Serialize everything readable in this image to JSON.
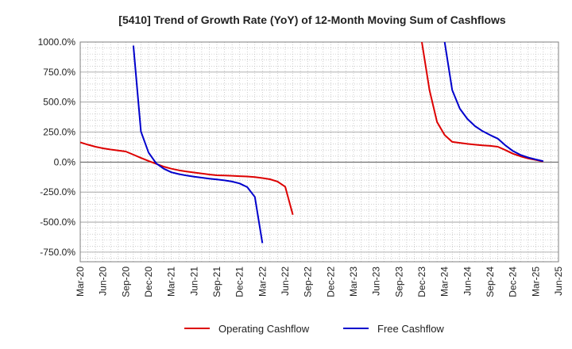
{
  "chart_data": {
    "type": "line",
    "title": "[5410]  Trend of Growth Rate (YoY) of 12-Month Moving Sum of Cashflows",
    "xlabel": "",
    "ylabel": "",
    "ylim": [
      -830,
      1000
    ],
    "xlim": [
      "2020-03",
      "2025-06"
    ],
    "y_ticks": [
      1000,
      750,
      500,
      250,
      0,
      -250,
      -500,
      -750
    ],
    "y_tick_labels": [
      "1000.0%",
      "750.0%",
      "500.0%",
      "250.0%",
      "0.0%",
      "-250.0%",
      "-500.0%",
      "-750.0%"
    ],
    "x_ticks": [
      "2020-03",
      "2020-06",
      "2020-09",
      "2020-12",
      "2021-03",
      "2021-06",
      "2021-09",
      "2021-12",
      "2022-03",
      "2022-06",
      "2022-09",
      "2022-12",
      "2023-03",
      "2023-06",
      "2023-09",
      "2023-12",
      "2024-03",
      "2024-06",
      "2024-09",
      "2024-12",
      "2025-03",
      "2025-06"
    ],
    "x_tick_labels": [
      "Mar-20",
      "Jun-20",
      "Sep-20",
      "Dec-20",
      "Mar-21",
      "Jun-21",
      "Sep-21",
      "Dec-21",
      "Mar-22",
      "Jun-22",
      "Sep-22",
      "Dec-22",
      "Mar-23",
      "Jun-23",
      "Sep-23",
      "Dec-23",
      "Mar-24",
      "Jun-24",
      "Sep-24",
      "Dec-24",
      "Mar-25",
      "Jun-25"
    ],
    "grid": true,
    "legend_position": "bottom",
    "series": [
      {
        "name": "Operating Cashflow",
        "color": "#dd0000",
        "segments": [
          [
            {
              "x": "2020-03",
              "y": 165
            },
            {
              "x": "2020-04",
              "y": 145
            },
            {
              "x": "2020-05",
              "y": 128
            },
            {
              "x": "2020-06",
              "y": 115
            },
            {
              "x": "2020-07",
              "y": 105
            },
            {
              "x": "2020-08",
              "y": 97
            },
            {
              "x": "2020-09",
              "y": 88
            },
            {
              "x": "2020-10",
              "y": 62
            },
            {
              "x": "2020-11",
              "y": 35
            },
            {
              "x": "2020-12",
              "y": 10
            },
            {
              "x": "2021-01",
              "y": -15
            },
            {
              "x": "2021-02",
              "y": -38
            },
            {
              "x": "2021-03",
              "y": -55
            },
            {
              "x": "2021-04",
              "y": -68
            },
            {
              "x": "2021-05",
              "y": -78
            },
            {
              "x": "2021-06",
              "y": -87
            },
            {
              "x": "2021-07",
              "y": -95
            },
            {
              "x": "2021-08",
              "y": -103
            },
            {
              "x": "2021-09",
              "y": -110
            },
            {
              "x": "2021-10",
              "y": -112
            },
            {
              "x": "2021-11",
              "y": -114
            },
            {
              "x": "2021-12",
              "y": -117
            },
            {
              "x": "2022-01",
              "y": -120
            },
            {
              "x": "2022-02",
              "y": -125
            },
            {
              "x": "2022-03",
              "y": -133
            },
            {
              "x": "2022-04",
              "y": -143
            },
            {
              "x": "2022-05",
              "y": -162
            },
            {
              "x": "2022-06",
              "y": -205
            },
            {
              "x": "2022-07",
              "y": -438
            }
          ],
          [
            {
              "x": "2023-12",
              "y": 1000
            },
            {
              "x": "2024-01",
              "y": 600
            },
            {
              "x": "2024-02",
              "y": 335
            },
            {
              "x": "2024-03",
              "y": 225
            },
            {
              "x": "2024-04",
              "y": 168
            },
            {
              "x": "2024-05",
              "y": 160
            },
            {
              "x": "2024-06",
              "y": 152
            },
            {
              "x": "2024-07",
              "y": 145
            },
            {
              "x": "2024-08",
              "y": 140
            },
            {
              "x": "2024-09",
              "y": 135
            },
            {
              "x": "2024-10",
              "y": 128
            },
            {
              "x": "2024-11",
              "y": 100
            },
            {
              "x": "2024-12",
              "y": 70
            },
            {
              "x": "2025-01",
              "y": 48
            },
            {
              "x": "2025-02",
              "y": 30
            },
            {
              "x": "2025-03",
              "y": 18
            },
            {
              "x": "2025-04",
              "y": 5
            }
          ]
        ]
      },
      {
        "name": "Free Cashflow",
        "color": "#0000cc",
        "segments": [
          [
            {
              "x": "2020-10",
              "y": 970
            },
            {
              "x": "2020-11",
              "y": 255
            },
            {
              "x": "2020-12",
              "y": 80
            },
            {
              "x": "2021-01",
              "y": -10
            },
            {
              "x": "2021-02",
              "y": -55
            },
            {
              "x": "2021-03",
              "y": -85
            },
            {
              "x": "2021-04",
              "y": -100
            },
            {
              "x": "2021-05",
              "y": -112
            },
            {
              "x": "2021-06",
              "y": -122
            },
            {
              "x": "2021-07",
              "y": -130
            },
            {
              "x": "2021-08",
              "y": -138
            },
            {
              "x": "2021-09",
              "y": -145
            },
            {
              "x": "2021-10",
              "y": -152
            },
            {
              "x": "2021-11",
              "y": -162
            },
            {
              "x": "2021-12",
              "y": -178
            },
            {
              "x": "2022-01",
              "y": -208
            },
            {
              "x": "2022-02",
              "y": -290
            },
            {
              "x": "2022-03",
              "y": -675
            }
          ],
          [
            {
              "x": "2024-03",
              "y": 1000
            },
            {
              "x": "2024-04",
              "y": 600
            },
            {
              "x": "2024-05",
              "y": 445
            },
            {
              "x": "2024-06",
              "y": 360
            },
            {
              "x": "2024-07",
              "y": 300
            },
            {
              "x": "2024-08",
              "y": 258
            },
            {
              "x": "2024-09",
              "y": 225
            },
            {
              "x": "2024-10",
              "y": 195
            },
            {
              "x": "2024-11",
              "y": 140
            },
            {
              "x": "2024-12",
              "y": 92
            },
            {
              "x": "2025-01",
              "y": 60
            },
            {
              "x": "2025-02",
              "y": 38
            },
            {
              "x": "2025-03",
              "y": 22
            },
            {
              "x": "2025-04",
              "y": 8
            }
          ]
        ]
      }
    ]
  }
}
